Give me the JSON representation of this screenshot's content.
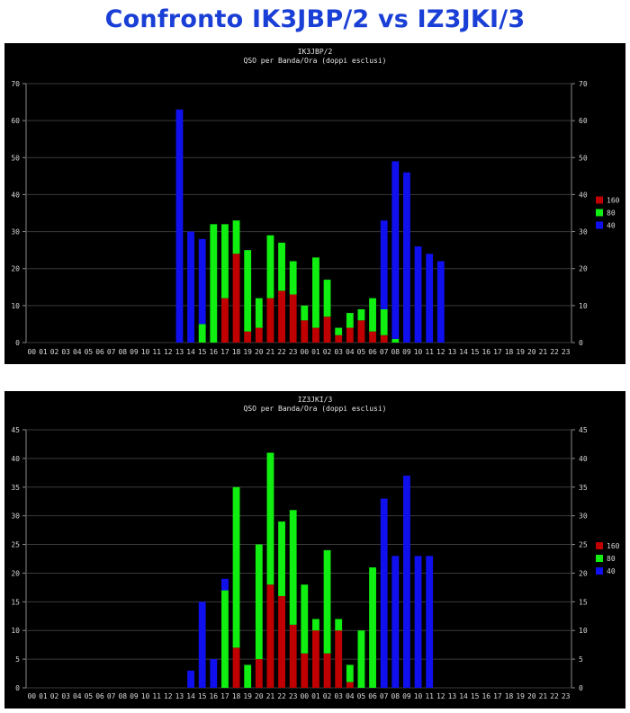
{
  "page_title": "Confronto IK3JBP/2 vs IZ3JKI/3",
  "colors": {
    "background": "#000000",
    "160": "#c00000",
    "80": "#11ee11",
    "40": "#1010ee",
    "title": "#1a3fd6"
  },
  "chart_data": [
    {
      "type": "bar",
      "stacked": true,
      "title": "IK3JBP/2",
      "subtitle": "QSO per Banda/Ora (doppi esclusi)",
      "xlabel": "",
      "ylabel": "",
      "ylim": [
        0,
        70
      ],
      "yticks": [
        0,
        10,
        20,
        30,
        40,
        50,
        60,
        70
      ],
      "grid": true,
      "legend_position": "right",
      "categories": [
        "00",
        "01",
        "02",
        "03",
        "04",
        "05",
        "06",
        "07",
        "08",
        "09",
        "10",
        "11",
        "12",
        "13",
        "14",
        "15",
        "16",
        "17",
        "18",
        "19",
        "20",
        "21",
        "22",
        "23",
        "00",
        "01",
        "02",
        "03",
        "04",
        "05",
        "06",
        "07",
        "08",
        "09",
        "10",
        "11",
        "12",
        "13",
        "14",
        "15",
        "16",
        "17",
        "18",
        "19",
        "20",
        "21",
        "22",
        "23"
      ],
      "series": [
        {
          "name": "160",
          "values": [
            0,
            0,
            0,
            0,
            0,
            0,
            0,
            0,
            0,
            0,
            0,
            0,
            0,
            0,
            0,
            0,
            0,
            12,
            24,
            3,
            4,
            12,
            14,
            13,
            6,
            4,
            7,
            2,
            4,
            6,
            3,
            2,
            0,
            0,
            0,
            0,
            0,
            0,
            0,
            0,
            0,
            0,
            0,
            0,
            0,
            0,
            0,
            0
          ]
        },
        {
          "name": "80",
          "values": [
            0,
            0,
            0,
            0,
            0,
            0,
            0,
            0,
            0,
            0,
            0,
            0,
            0,
            0,
            0,
            5,
            32,
            20,
            9,
            22,
            8,
            17,
            13,
            9,
            4,
            19,
            10,
            2,
            4,
            3,
            9,
            7,
            1,
            0,
            0,
            0,
            0,
            0,
            0,
            0,
            0,
            0,
            0,
            0,
            0,
            0,
            0,
            0
          ]
        },
        {
          "name": "40",
          "values": [
            0,
            0,
            0,
            0,
            0,
            0,
            0,
            0,
            0,
            0,
            0,
            0,
            0,
            63,
            30,
            23,
            0,
            0,
            0,
            0,
            0,
            0,
            0,
            0,
            0,
            0,
            0,
            0,
            0,
            0,
            0,
            24,
            48,
            46,
            26,
            24,
            22,
            0,
            0,
            0,
            0,
            0,
            0,
            0,
            0,
            0,
            0,
            0
          ]
        }
      ]
    },
    {
      "type": "bar",
      "stacked": true,
      "title": "IZ3JKI/3",
      "subtitle": "QSO per Banda/Ora (doppi esclusi)",
      "xlabel": "",
      "ylabel": "",
      "ylim": [
        0,
        45
      ],
      "yticks": [
        0,
        5,
        10,
        15,
        20,
        25,
        30,
        35,
        40,
        45
      ],
      "grid": true,
      "legend_position": "right",
      "categories": [
        "00",
        "01",
        "02",
        "03",
        "04",
        "05",
        "06",
        "07",
        "08",
        "09",
        "10",
        "11",
        "12",
        "13",
        "14",
        "15",
        "16",
        "17",
        "18",
        "19",
        "20",
        "21",
        "22",
        "23",
        "00",
        "01",
        "02",
        "03",
        "04",
        "05",
        "06",
        "07",
        "08",
        "09",
        "10",
        "11",
        "12",
        "13",
        "14",
        "15",
        "16",
        "17",
        "18",
        "19",
        "20",
        "21",
        "22",
        "23"
      ],
      "series": [
        {
          "name": "160",
          "values": [
            0,
            0,
            0,
            0,
            0,
            0,
            0,
            0,
            0,
            0,
            0,
            0,
            0,
            0,
            0,
            0,
            0,
            0,
            7,
            0,
            5,
            18,
            16,
            11,
            6,
            10,
            6,
            10,
            1,
            0,
            0,
            0,
            0,
            0,
            0,
            0,
            0,
            0,
            0,
            0,
            0,
            0,
            0,
            0,
            0,
            0,
            0,
            0
          ]
        },
        {
          "name": "80",
          "values": [
            0,
            0,
            0,
            0,
            0,
            0,
            0,
            0,
            0,
            0,
            0,
            0,
            0,
            0,
            0,
            0,
            0,
            17,
            28,
            4,
            20,
            23,
            13,
            20,
            12,
            2,
            18,
            2,
            3,
            10,
            21,
            0,
            0,
            0,
            0,
            0,
            0,
            0,
            0,
            0,
            0,
            0,
            0,
            0,
            0,
            0,
            0,
            0
          ]
        },
        {
          "name": "40",
          "values": [
            0,
            0,
            0,
            0,
            0,
            0,
            0,
            0,
            0,
            0,
            0,
            0,
            0,
            0,
            3,
            15,
            5,
            2,
            0,
            0,
            0,
            0,
            0,
            0,
            0,
            0,
            0,
            0,
            0,
            0,
            0,
            33,
            23,
            37,
            23,
            23,
            0,
            0,
            0,
            0,
            0,
            0,
            0,
            0,
            0,
            0,
            0,
            0
          ]
        }
      ]
    }
  ]
}
